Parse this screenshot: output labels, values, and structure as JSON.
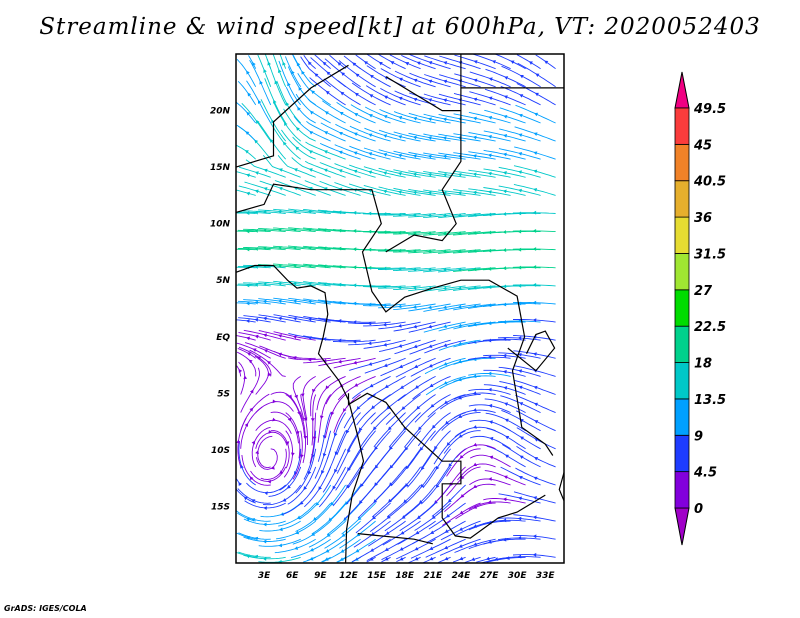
{
  "title": "Streamline & wind speed[kt] at 600hPa, VT: 2020052403",
  "credit": "GrADS: IGES/COLA",
  "map": {
    "lon_range": [
      0,
      35
    ],
    "lat_range": [
      -20,
      25
    ],
    "x_ticks": [
      {
        "v": 3,
        "label": "3E"
      },
      {
        "v": 6,
        "label": "6E"
      },
      {
        "v": 9,
        "label": "9E"
      },
      {
        "v": 12,
        "label": "12E"
      },
      {
        "v": 15,
        "label": "15E"
      },
      {
        "v": 18,
        "label": "18E"
      },
      {
        "v": 21,
        "label": "21E"
      },
      {
        "v": 24,
        "label": "24E"
      },
      {
        "v": 27,
        "label": "27E"
      },
      {
        "v": 30,
        "label": "30E"
      },
      {
        "v": 33,
        "label": "33E"
      }
    ],
    "y_ticks": [
      {
        "v": 20,
        "label": "20N"
      },
      {
        "v": 15,
        "label": "15N"
      },
      {
        "v": 10,
        "label": "10N"
      },
      {
        "v": 5,
        "label": "5N"
      },
      {
        "v": 0,
        "label": "EQ"
      },
      {
        "v": -5,
        "label": "5S"
      },
      {
        "v": -10,
        "label": "10S"
      },
      {
        "v": -15,
        "label": "15S"
      }
    ]
  },
  "colorbar": {
    "labels": [
      "0",
      "4.5",
      "9",
      "13.5",
      "18",
      "22.5",
      "27",
      "31.5",
      "36",
      "40.5",
      "45",
      "49.5"
    ],
    "levels": [
      0,
      4.5,
      9,
      13.5,
      18,
      22.5,
      27,
      31.5,
      36,
      40.5,
      45,
      49.5
    ],
    "colors": [
      "#a000c8",
      "#8200dc",
      "#1e3cff",
      "#00a0ff",
      "#00c8c8",
      "#00d28c",
      "#00dc00",
      "#a0e632",
      "#e6dc32",
      "#e6af2d",
      "#f08228",
      "#fa3c3c",
      "#f00082"
    ]
  }
}
